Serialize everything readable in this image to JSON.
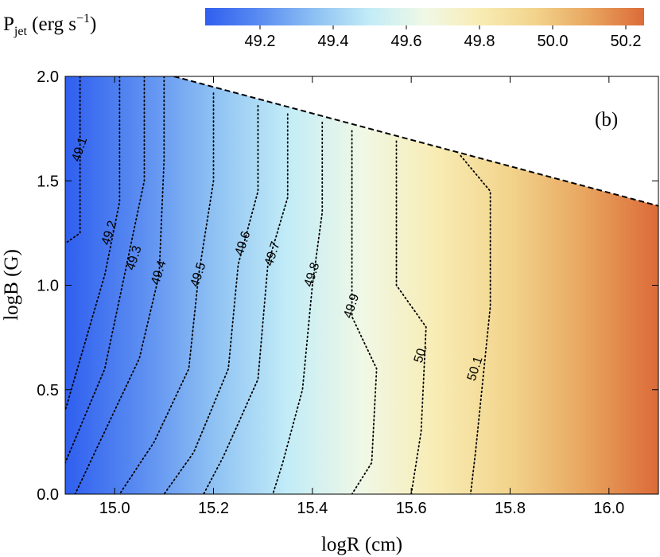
{
  "chart_data": {
    "type": "contour",
    "panel_label": "(b)",
    "xlabel": "logR (cm)",
    "ylabel": "logB (G)",
    "xlim": [
      14.9,
      16.1
    ],
    "ylim": [
      0.0,
      2.0
    ],
    "x_ticks": [
      "15.0",
      "15.2",
      "15.4",
      "15.6",
      "15.8",
      "16.0"
    ],
    "y_ticks": [
      "0.0",
      "0.5",
      "1.0",
      "1.5",
      "2.0"
    ],
    "colorbar": {
      "label_main": "P",
      "label_sub": "jet",
      "label_units": " (erg s",
      "label_exp": "−1",
      "label_close": ")",
      "range": [
        49.05,
        50.25
      ],
      "ticks": [
        "49.2",
        "49.4",
        "49.6",
        "49.8",
        "50.0",
        "50.2"
      ],
      "colors": [
        "#2f5fef",
        "#5a8cf1",
        "#8ec1f3",
        "#c2ecf7",
        "#f0f8e6",
        "#f8ecb4",
        "#f2d48c",
        "#e8a660",
        "#dc6a38"
      ]
    },
    "boundary": {
      "x": [
        15.12,
        16.1
      ],
      "y": [
        2.0,
        1.38
      ],
      "style": "dashed"
    },
    "contours": [
      {
        "level": "49.1",
        "x": [
          14.93,
          14.93,
          14.9
        ],
        "y": [
          2.0,
          1.25,
          1.2
        ],
        "label_at": [
          14.93,
          1.65
        ]
      },
      {
        "level": "49.2",
        "x": [
          15.01,
          15.01,
          14.98,
          14.9
        ],
        "y": [
          2.0,
          1.4,
          1.05,
          0.4
        ],
        "label_at": [
          14.99,
          1.25
        ]
      },
      {
        "level": "49.3",
        "x": [
          15.06,
          15.06,
          15.02,
          14.98,
          14.9
        ],
        "y": [
          2.0,
          1.5,
          1.05,
          0.6,
          0.15
        ],
        "label_at": [
          15.04,
          1.13
        ]
      },
      {
        "level": "49.4",
        "x": [
          15.1,
          15.1,
          15.09,
          15.05,
          14.98,
          14.92
        ],
        "y": [
          2.0,
          1.6,
          1.05,
          0.65,
          0.3,
          0.0
        ],
        "label_at": [
          15.09,
          1.06
        ]
      },
      {
        "level": "49.5",
        "x": [
          15.2,
          15.2,
          15.17,
          15.15,
          15.08,
          15.01
        ],
        "y": [
          1.92,
          1.5,
          1.05,
          0.6,
          0.25,
          0.0
        ],
        "label_at": [
          15.17,
          1.05
        ]
      },
      {
        "level": "49.6",
        "x": [
          15.29,
          15.29,
          15.25,
          15.23,
          15.16,
          15.1
        ],
        "y": [
          1.86,
          1.45,
          1.1,
          0.6,
          0.2,
          0.0
        ],
        "label_at": [
          15.26,
          1.2
        ]
      },
      {
        "level": "49.7",
        "x": [
          15.35,
          15.35,
          15.31,
          15.29,
          15.22,
          15.18
        ],
        "y": [
          1.82,
          1.42,
          1.1,
          0.55,
          0.18,
          0.0
        ],
        "label_at": [
          15.32,
          1.15
        ]
      },
      {
        "level": "49.8",
        "x": [
          15.42,
          15.42,
          15.4,
          15.38,
          15.34,
          15.32
        ],
        "y": [
          1.78,
          1.35,
          1.0,
          0.5,
          0.15,
          0.0
        ],
        "label_at": [
          15.4,
          1.05
        ]
      },
      {
        "level": "49.9",
        "x": [
          15.48,
          15.48,
          15.48,
          15.53,
          15.52,
          15.48
        ],
        "y": [
          1.74,
          1.35,
          0.85,
          0.6,
          0.15,
          0.0
        ],
        "label_at": [
          15.48,
          0.9
        ]
      },
      {
        "level": "50.",
        "x": [
          15.57,
          15.57,
          15.63,
          15.62,
          15.6
        ],
        "y": [
          1.69,
          1.0,
          0.8,
          0.3,
          0.0
        ],
        "label_at": [
          15.62,
          0.67
        ]
      },
      {
        "level": "50.1",
        "x": [
          15.7,
          15.76,
          15.76,
          15.73,
          15.72
        ],
        "y": [
          1.62,
          1.45,
          0.9,
          0.2,
          0.0
        ],
        "label_at": [
          15.73,
          0.6
        ]
      }
    ]
  }
}
